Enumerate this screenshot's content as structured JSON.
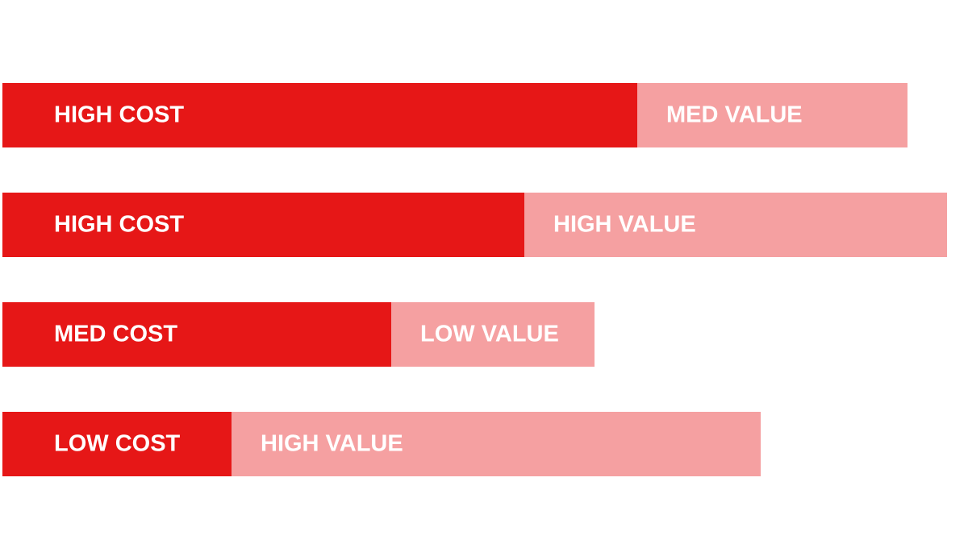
{
  "chart_data": {
    "type": "stacked-bar-horizontal",
    "xlim": [
      0,
      1197
    ],
    "series": [
      {
        "color": "#e61717",
        "values": [
          787,
          647,
          482,
          284
        ],
        "labels": [
          "HIGH COST",
          "HIGH COST",
          "MED COST",
          "LOW COST"
        ]
      },
      {
        "color": "#f5a0a1",
        "values": [
          335,
          524,
          252,
          656
        ],
        "labels": [
          "MED VALUE",
          "HIGH VALUE",
          "LOW VALUE",
          "HIGH VALUE"
        ]
      }
    ]
  }
}
